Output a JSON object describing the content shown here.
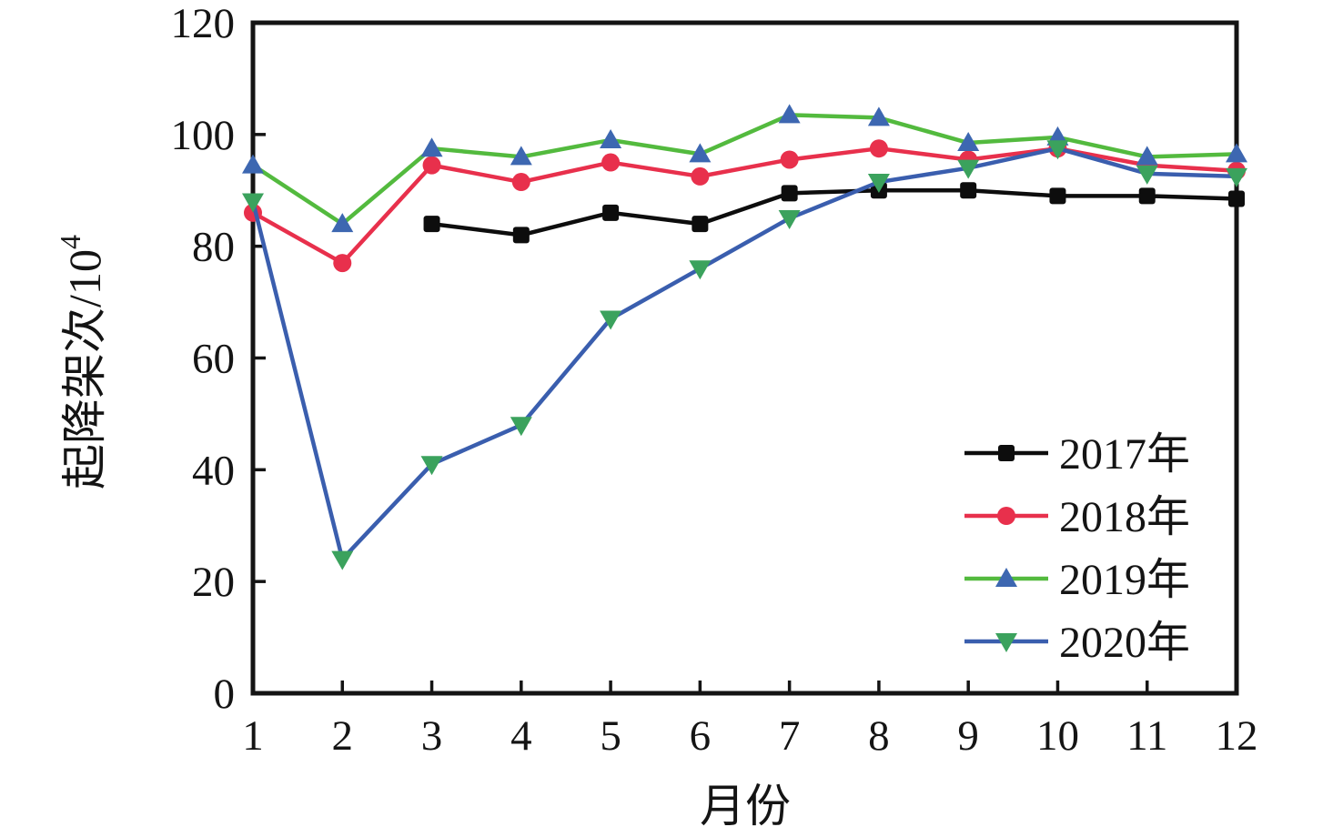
{
  "figure": {
    "background": "#ffffff",
    "ink_color": "#141414"
  },
  "chart_data": {
    "type": "line",
    "title": "",
    "xlabel": "月份",
    "ylabel": "起降架次/10⁴",
    "ylabel_base": "起降架次/10",
    "ylabel_superscript": "4",
    "x": [
      1,
      2,
      3,
      4,
      5,
      6,
      7,
      8,
      9,
      10,
      11,
      12
    ],
    "xlim": [
      1,
      12
    ],
    "ylim": [
      0,
      120
    ],
    "yticks": [
      0,
      20,
      40,
      60,
      80,
      100,
      120
    ],
    "grid": false,
    "legend_position": "inside lower right",
    "series": [
      {
        "name": "2017年",
        "line_color": "#0d0d0d",
        "marker": "square",
        "marker_color": "#0d0d0d",
        "values": [
          null,
          null,
          84,
          82,
          86,
          84,
          89.5,
          90,
          90,
          89,
          89,
          88.5
        ]
      },
      {
        "name": "2018年",
        "line_color": "#e8304c",
        "marker": "circle",
        "marker_color": "#e8304c",
        "values": [
          86,
          77,
          94.5,
          91.5,
          95,
          92.5,
          95.5,
          97.5,
          95.5,
          97.5,
          94.5,
          93.5
        ]
      },
      {
        "name": "2019年",
        "line_color": "#53ba3e",
        "marker": "triangle-up",
        "marker_color": "#3d67b1",
        "values": [
          94.5,
          84,
          97.5,
          96,
          99,
          96.5,
          103.5,
          103,
          98.5,
          99.5,
          96,
          96.5
        ]
      },
      {
        "name": "2020年",
        "line_color": "#3a5eae",
        "marker": "triangle-down",
        "marker_color": "#3ba25d",
        "values": [
          88,
          24,
          41,
          48,
          67,
          76,
          85,
          91.5,
          94,
          97.5,
          93,
          92.5
        ]
      }
    ]
  }
}
